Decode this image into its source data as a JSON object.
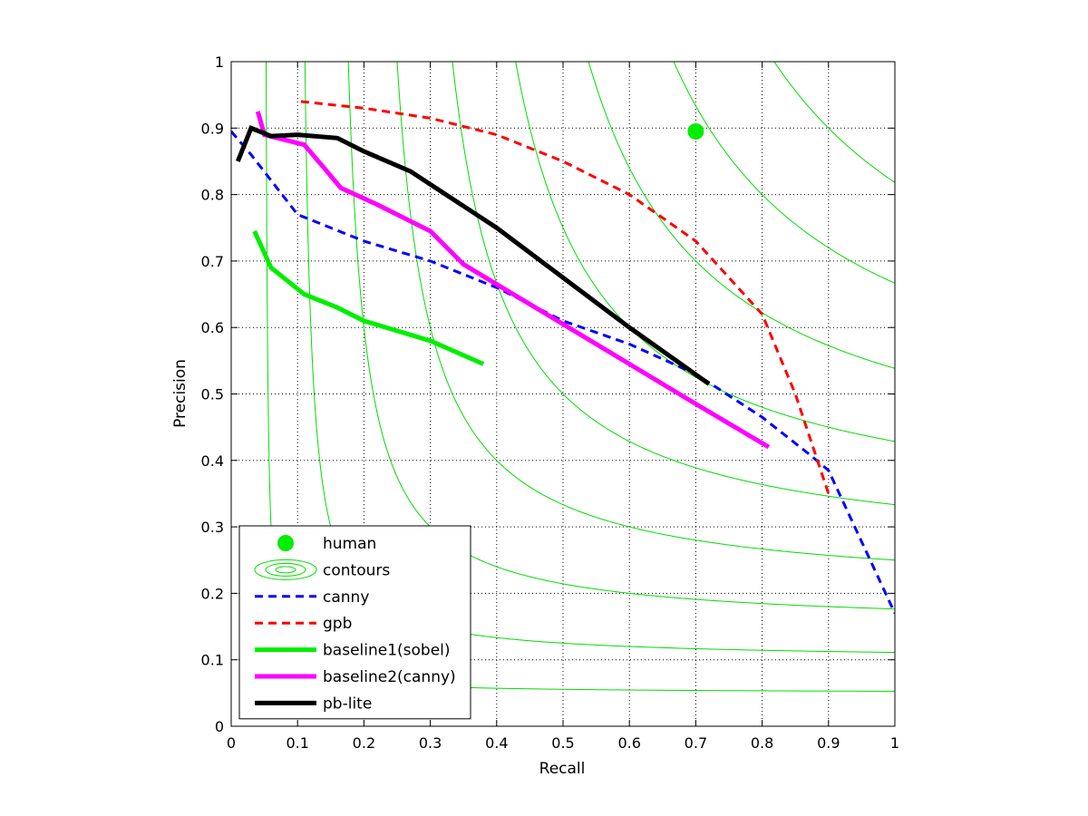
{
  "chart_data": {
    "type": "line",
    "title": "",
    "xlabel": "Recall",
    "ylabel": "Precision",
    "xlim": [
      0,
      1
    ],
    "ylim": [
      0,
      1
    ],
    "grid": true,
    "legend_placement": "bottom-left",
    "x_ticks": [
      "0",
      "0.1",
      "0.2",
      "0.3",
      "0.4",
      "0.5",
      "0.6",
      "0.7",
      "0.8",
      "0.9",
      "1"
    ],
    "y_ticks": [
      "0",
      "0.1",
      "0.2",
      "0.3",
      "0.4",
      "0.5",
      "0.6",
      "0.7",
      "0.8",
      "0.9",
      "1"
    ],
    "contour_levels": [
      0.1,
      0.2,
      0.3,
      0.4,
      0.5,
      0.6,
      0.7,
      0.8,
      0.9
    ],
    "contour_color": "#00dd00",
    "human_point": {
      "name": "human",
      "x": 0.7,
      "y": 0.895,
      "color": "#00ee00"
    },
    "series": [
      {
        "name": "canny",
        "color": "#0000ff",
        "style": "dashed",
        "points": [
          [
            0.0,
            0.895
          ],
          [
            0.03,
            0.86
          ],
          [
            0.1,
            0.77
          ],
          [
            0.2,
            0.73
          ],
          [
            0.3,
            0.7
          ],
          [
            0.4,
            0.66
          ],
          [
            0.5,
            0.61
          ],
          [
            0.6,
            0.575
          ],
          [
            0.7,
            0.53
          ],
          [
            0.8,
            0.465
          ],
          [
            0.87,
            0.41
          ],
          [
            0.9,
            0.385
          ],
          [
            1.0,
            0.17
          ]
        ]
      },
      {
        "name": "gpb",
        "color": "#ff0000",
        "style": "dashed",
        "points": [
          [
            0.105,
            0.94
          ],
          [
            0.2,
            0.93
          ],
          [
            0.3,
            0.915
          ],
          [
            0.4,
            0.89
          ],
          [
            0.5,
            0.85
          ],
          [
            0.6,
            0.8
          ],
          [
            0.7,
            0.73
          ],
          [
            0.8,
            0.62
          ],
          [
            0.85,
            0.5
          ],
          [
            0.9,
            0.35
          ]
        ]
      },
      {
        "name": "baseline1(sobel)",
        "color": "#00ee00",
        "style": "solid",
        "points": [
          [
            0.035,
            0.745
          ],
          [
            0.06,
            0.69
          ],
          [
            0.11,
            0.65
          ],
          [
            0.16,
            0.63
          ],
          [
            0.2,
            0.61
          ],
          [
            0.3,
            0.58
          ],
          [
            0.38,
            0.545
          ]
        ]
      },
      {
        "name": "baseline2(canny)",
        "color": "#ff00ff",
        "style": "solid",
        "points": [
          [
            0.04,
            0.925
          ],
          [
            0.05,
            0.89
          ],
          [
            0.11,
            0.875
          ],
          [
            0.14,
            0.84
          ],
          [
            0.165,
            0.81
          ],
          [
            0.22,
            0.785
          ],
          [
            0.3,
            0.745
          ],
          [
            0.35,
            0.695
          ],
          [
            0.4,
            0.665
          ],
          [
            0.5,
            0.605
          ],
          [
            0.6,
            0.545
          ],
          [
            0.7,
            0.485
          ],
          [
            0.81,
            0.42
          ]
        ]
      },
      {
        "name": "pb-lite",
        "color": "#000000",
        "style": "solid",
        "points": [
          [
            0.01,
            0.85
          ],
          [
            0.03,
            0.9
          ],
          [
            0.06,
            0.888
          ],
          [
            0.1,
            0.89
          ],
          [
            0.16,
            0.885
          ],
          [
            0.2,
            0.865
          ],
          [
            0.27,
            0.835
          ],
          [
            0.4,
            0.75
          ],
          [
            0.5,
            0.675
          ],
          [
            0.6,
            0.6
          ],
          [
            0.72,
            0.515
          ]
        ]
      }
    ],
    "legend": [
      {
        "label": "human",
        "kind": "marker",
        "color": "#00ee00"
      },
      {
        "label": "contours",
        "kind": "contour",
        "color": "#00dd00"
      },
      {
        "label": "canny",
        "kind": "line",
        "color": "#0000ff",
        "style": "dashed"
      },
      {
        "label": "gpb",
        "kind": "line",
        "color": "#ff0000",
        "style": "dashed"
      },
      {
        "label": "baseline1(sobel)",
        "kind": "line",
        "color": "#00ee00",
        "style": "solid"
      },
      {
        "label": "baseline2(canny)",
        "kind": "line",
        "color": "#ff00ff",
        "style": "solid"
      },
      {
        "label": "pb-lite",
        "kind": "line",
        "color": "#000000",
        "style": "solid"
      }
    ]
  }
}
